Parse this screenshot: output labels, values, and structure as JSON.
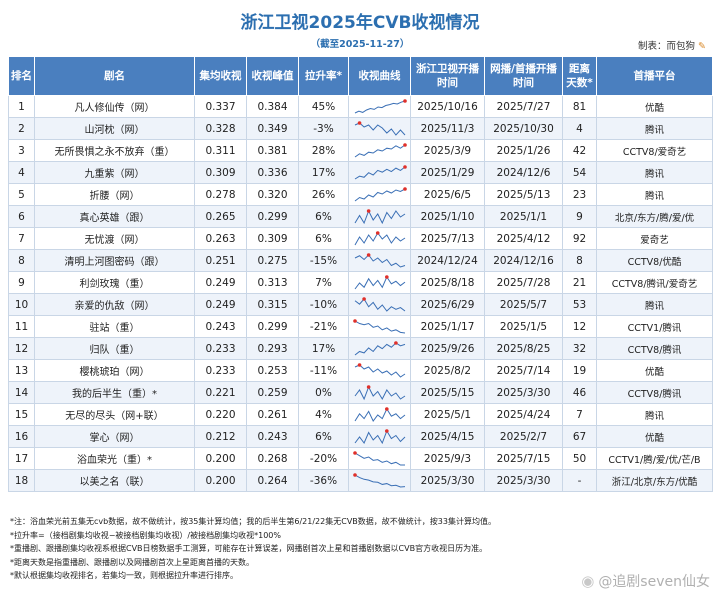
{
  "title": "浙江卫视2025年CVB收视情况",
  "subtitle": "（截至2025-11-27）",
  "maker": "制表：而包狗",
  "headers": [
    "排名",
    "剧名",
    "集均收视",
    "收视峰值",
    "拉升率*",
    "收视曲线",
    "浙江卫视开播时间",
    "网播/首播开播时间",
    "距离天数*",
    "首播平台"
  ],
  "rows": [
    {
      "rank": "1",
      "name": "凡人修仙传（网）",
      "avg": "0.337",
      "peak": "0.384",
      "lift": "45%",
      "tv": "2025/10/16",
      "net": "2025/7/27",
      "days": "81",
      "platform": "优酷",
      "curve": [
        0.3,
        0.36,
        0.32,
        0.4,
        0.45,
        0.42,
        0.5,
        0.48,
        0.55,
        0.58,
        0.62,
        0.6,
        0.66,
        0.7
      ]
    },
    {
      "rank": "2",
      "name": "山河枕（网）",
      "avg": "0.328",
      "peak": "0.349",
      "lift": "-3%",
      "tv": "2025/11/3",
      "net": "2025/10/30",
      "days": "4",
      "platform": "腾讯",
      "curve": [
        0.6,
        0.62,
        0.58,
        0.6,
        0.55,
        0.6,
        0.57,
        0.52,
        0.56,
        0.5,
        0.55,
        0.5
      ]
    },
    {
      "rank": "3",
      "name": "无所畏惧之永不放弃（重）",
      "avg": "0.311",
      "peak": "0.381",
      "lift": "28%",
      "tv": "2025/3/9",
      "net": "2025/1/26",
      "days": "42",
      "platform": "CCTV8/爱奇艺",
      "curve": [
        0.4,
        0.48,
        0.44,
        0.52,
        0.5,
        0.58,
        0.55,
        0.62,
        0.6,
        0.68,
        0.62,
        0.7
      ]
    },
    {
      "rank": "4",
      "name": "九重紫（网）",
      "avg": "0.309",
      "peak": "0.336",
      "lift": "17%",
      "tv": "2025/1/29",
      "net": "2024/12/6",
      "days": "54",
      "platform": "腾讯",
      "curve": [
        0.45,
        0.5,
        0.48,
        0.56,
        0.52,
        0.6,
        0.57,
        0.62,
        0.58,
        0.64,
        0.6,
        0.66
      ]
    },
    {
      "rank": "5",
      "name": "折腰（网）",
      "avg": "0.278",
      "peak": "0.320",
      "lift": "26%",
      "tv": "2025/6/5",
      "net": "2025/5/13",
      "days": "23",
      "platform": "腾讯",
      "curve": [
        0.38,
        0.45,
        0.42,
        0.5,
        0.46,
        0.55,
        0.52,
        0.58,
        0.54,
        0.6,
        0.57,
        0.62
      ]
    },
    {
      "rank": "6",
      "name": "真心英雄（跟）",
      "avg": "0.265",
      "peak": "0.299",
      "lift": "6%",
      "tv": "2025/1/10",
      "net": "2025/1/1",
      "days": "9",
      "platform": "北京/东方/腾/爱/优",
      "curve": [
        0.5,
        0.55,
        0.5,
        0.58,
        0.52,
        0.56,
        0.5,
        0.57,
        0.53,
        0.58,
        0.54,
        0.56
      ]
    },
    {
      "rank": "7",
      "name": "无忧渡（网）",
      "avg": "0.263",
      "peak": "0.309",
      "lift": "6%",
      "tv": "2025/7/13",
      "net": "2025/4/12",
      "days": "92",
      "platform": "爱奇艺",
      "curve": [
        0.5,
        0.58,
        0.52,
        0.6,
        0.54,
        0.62,
        0.56,
        0.6,
        0.52,
        0.58,
        0.54,
        0.57
      ]
    },
    {
      "rank": "8",
      "name": "清明上河图密码（跟）",
      "avg": "0.251",
      "peak": "0.275",
      "lift": "-15%",
      "tv": "2024/12/24",
      "net": "2024/12/16",
      "days": "8",
      "platform": "CCTV8/优酷",
      "curve": [
        0.62,
        0.65,
        0.6,
        0.66,
        0.58,
        0.62,
        0.56,
        0.6,
        0.52,
        0.55,
        0.5,
        0.52
      ]
    },
    {
      "rank": "9",
      "name": "利剑玫瑰（重）",
      "avg": "0.249",
      "peak": "0.313",
      "lift": "7%",
      "tv": "2025/8/18",
      "net": "2025/7/28",
      "days": "21",
      "platform": "CCTV8/腾讯/爱奇艺",
      "curve": [
        0.48,
        0.55,
        0.5,
        0.6,
        0.52,
        0.58,
        0.5,
        0.62,
        0.54,
        0.57,
        0.52,
        0.56
      ]
    },
    {
      "rank": "10",
      "name": "亲爱的仇敌（网）",
      "avg": "0.249",
      "peak": "0.315",
      "lift": "-10%",
      "tv": "2025/6/29",
      "net": "2025/5/7",
      "days": "53",
      "platform": "腾讯",
      "curve": [
        0.62,
        0.58,
        0.64,
        0.55,
        0.6,
        0.52,
        0.57,
        0.5,
        0.55,
        0.52,
        0.54,
        0.5
      ]
    },
    {
      "rank": "11",
      "name": "驻站（重）",
      "avg": "0.243",
      "peak": "0.299",
      "lift": "-21%",
      "tv": "2025/1/17",
      "net": "2025/1/5",
      "days": "12",
      "platform": "CCTV1/腾讯",
      "curve": [
        0.66,
        0.62,
        0.6,
        0.62,
        0.56,
        0.58,
        0.52,
        0.55,
        0.5,
        0.52,
        0.48,
        0.47
      ]
    },
    {
      "rank": "12",
      "name": "归队（重）",
      "avg": "0.233",
      "peak": "0.293",
      "lift": "17%",
      "tv": "2025/9/26",
      "net": "2025/8/25",
      "days": "32",
      "platform": "CCTV8/腾讯",
      "curve": [
        0.45,
        0.5,
        0.48,
        0.55,
        0.5,
        0.58,
        0.54,
        0.6,
        0.56,
        0.62,
        0.58,
        0.6
      ]
    },
    {
      "rank": "13",
      "name": "樱桃琥珀（网）",
      "avg": "0.233",
      "peak": "0.253",
      "lift": "-11%",
      "tv": "2025/8/2",
      "net": "2025/7/14",
      "days": "19",
      "platform": "优酷",
      "curve": [
        0.6,
        0.62,
        0.58,
        0.6,
        0.55,
        0.58,
        0.54,
        0.56,
        0.52,
        0.55,
        0.5,
        0.53
      ]
    },
    {
      "rank": "14",
      "name": "我的后半生（重）*",
      "avg": "0.221",
      "peak": "0.259",
      "lift": "0%",
      "tv": "2025/5/15",
      "net": "2025/3/30",
      "days": "46",
      "platform": "CCTV8/腾讯",
      "curve": [
        0.52,
        0.56,
        0.5,
        0.58,
        0.52,
        0.55,
        0.5,
        0.56,
        0.52,
        0.54,
        0.5,
        0.52
      ]
    },
    {
      "rank": "15",
      "name": "无尽的尽头（网+联）",
      "avg": "0.220",
      "peak": "0.261",
      "lift": "4%",
      "tv": "2025/5/1",
      "net": "2025/4/24",
      "days": "7",
      "platform": "腾讯",
      "curve": [
        0.5,
        0.56,
        0.52,
        0.58,
        0.5,
        0.55,
        0.52,
        0.6,
        0.54,
        0.56,
        0.52,
        0.55
      ]
    },
    {
      "rank": "16",
      "name": "掌心（网）",
      "avg": "0.212",
      "peak": "0.243",
      "lift": "6%",
      "tv": "2025/4/15",
      "net": "2025/2/7",
      "days": "67",
      "platform": "优酷",
      "curve": [
        0.5,
        0.54,
        0.5,
        0.57,
        0.52,
        0.55,
        0.5,
        0.58,
        0.53,
        0.55,
        0.51,
        0.54
      ]
    },
    {
      "rank": "17",
      "name": "浴血荣光（重）*",
      "avg": "0.200",
      "peak": "0.268",
      "lift": "-20%",
      "tv": "2025/9/3",
      "net": "2025/7/15",
      "days": "50",
      "platform": "CCTV1/腾/爱/优/芒/B",
      "curve": [
        0.66,
        0.62,
        0.58,
        0.6,
        0.55,
        0.56,
        0.52,
        0.54,
        0.5,
        0.52,
        0.48,
        0.48
      ]
    },
    {
      "rank": "18",
      "name": "以美之名（联）",
      "avg": "0.200",
      "peak": "0.264",
      "lift": "-36%",
      "tv": "2025/3/30",
      "net": "2025/3/30",
      "days": "-",
      "platform": "浙江/北京/东方/优酷",
      "curve": [
        0.72,
        0.66,
        0.62,
        0.6,
        0.56,
        0.55,
        0.5,
        0.52,
        0.47,
        0.48,
        0.44,
        0.45
      ]
    }
  ],
  "notes": [
    "*注：浴血荣光前五集无cvb数据，故不做统计，按35集计算均值；我的后半生第6/21/22集无CVB数据，故不做统计，按33集计算均值。",
    "*拉升率=（接档剧集均收视−被接档剧集均收视）/被接档剧集均收视*100%",
    "*重播剧、跟播剧集均收视系根据CVB日榜数据手工测算，可能存在计算误差，网播剧首次上星和首播剧数据以CVB官方收视日历为准。",
    "*距离天数是指重播剧、跟播剧以及网播剧首次上星距离首播的天数。",
    "*默认根据集均收视排名，若集均一致，则根据拉升率进行排序。"
  ],
  "watermark": "@追剧seven仙女",
  "colors": {
    "header_bg": "#4a7fbf",
    "title": "#2c6fb0",
    "line": "#3a6fb5",
    "peak": "#e0302a"
  }
}
